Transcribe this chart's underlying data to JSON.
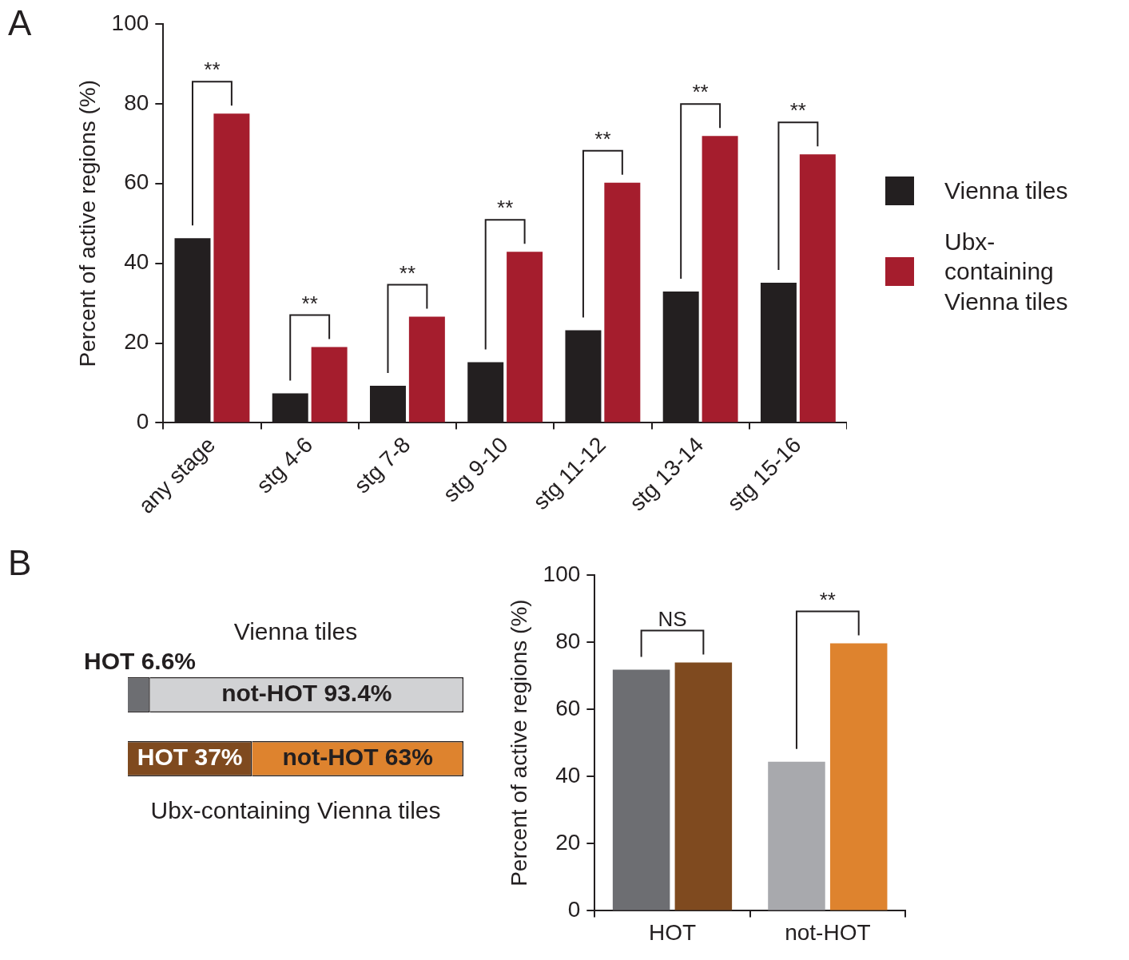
{
  "chart_data": [
    {
      "type": "bar",
      "ylabel": "Percent of active regions (%)",
      "categories": [
        "any stage",
        "stg 4-6",
        "stg 7-8",
        "stg 9-10",
        "stg 11-12",
        "stg 13-14",
        "stg 15-16"
      ],
      "series": [
        {
          "name": "Vienna tiles",
          "color": "#231f20",
          "values": [
            46.3,
            7.4,
            9.3,
            15.2,
            23.2,
            32.9,
            35.1
          ]
        },
        {
          "name": "Ubx-containing Vienna tiles",
          "color": "#a51d2d",
          "values": [
            77.5,
            19.0,
            26.6,
            42.9,
            60.2,
            71.9,
            67.3
          ]
        }
      ],
      "ylim": [
        0,
        100
      ],
      "yticks": [
        0,
        20,
        40,
        60,
        80,
        100
      ],
      "grid": false,
      "legend": "right",
      "annotations": [
        "A",
        "**",
        "**",
        "**",
        "**",
        "**",
        "**",
        "**"
      ]
    },
    {
      "type": "bar",
      "orientation": "horizontal",
      "stacked": true,
      "categories": [
        "Vienna tiles",
        "Ubx-containing Vienna tiles"
      ],
      "series": [
        {
          "colors": [
            "#6d6e72",
            "#7f4a1f"
          ],
          "values": [
            6.6,
            37
          ],
          "value_labels": [
            "HOT 6.6%",
            "HOT 37%"
          ]
        },
        {
          "colors": [
            "#d1d2d4",
            "#de832e"
          ],
          "values": [
            93.4,
            63
          ],
          "value_labels": [
            "not-HOT 93.4%",
            "not-HOT 63%"
          ]
        }
      ],
      "xlim": [
        0,
        100
      ],
      "tick_labels": false,
      "grid": false,
      "legend": false,
      "annotations": [
        "B"
      ]
    },
    {
      "type": "bar",
      "ylabel": "Percent of active regions (%)",
      "categories": [
        "HOT",
        "not-HOT"
      ],
      "series": [
        {
          "colors": [
            "#6d6e72",
            "#a8a9ad"
          ],
          "values": [
            71.8,
            44.4
          ]
        },
        {
          "colors": [
            "#7f4a1f",
            "#de832e"
          ],
          "values": [
            73.9,
            79.6
          ]
        }
      ],
      "ylim": [
        0,
        100
      ],
      "yticks": [
        0,
        20,
        40,
        60,
        80,
        100
      ],
      "grid": false,
      "legend": false,
      "annotations": [
        "NS",
        "**"
      ]
    }
  ]
}
